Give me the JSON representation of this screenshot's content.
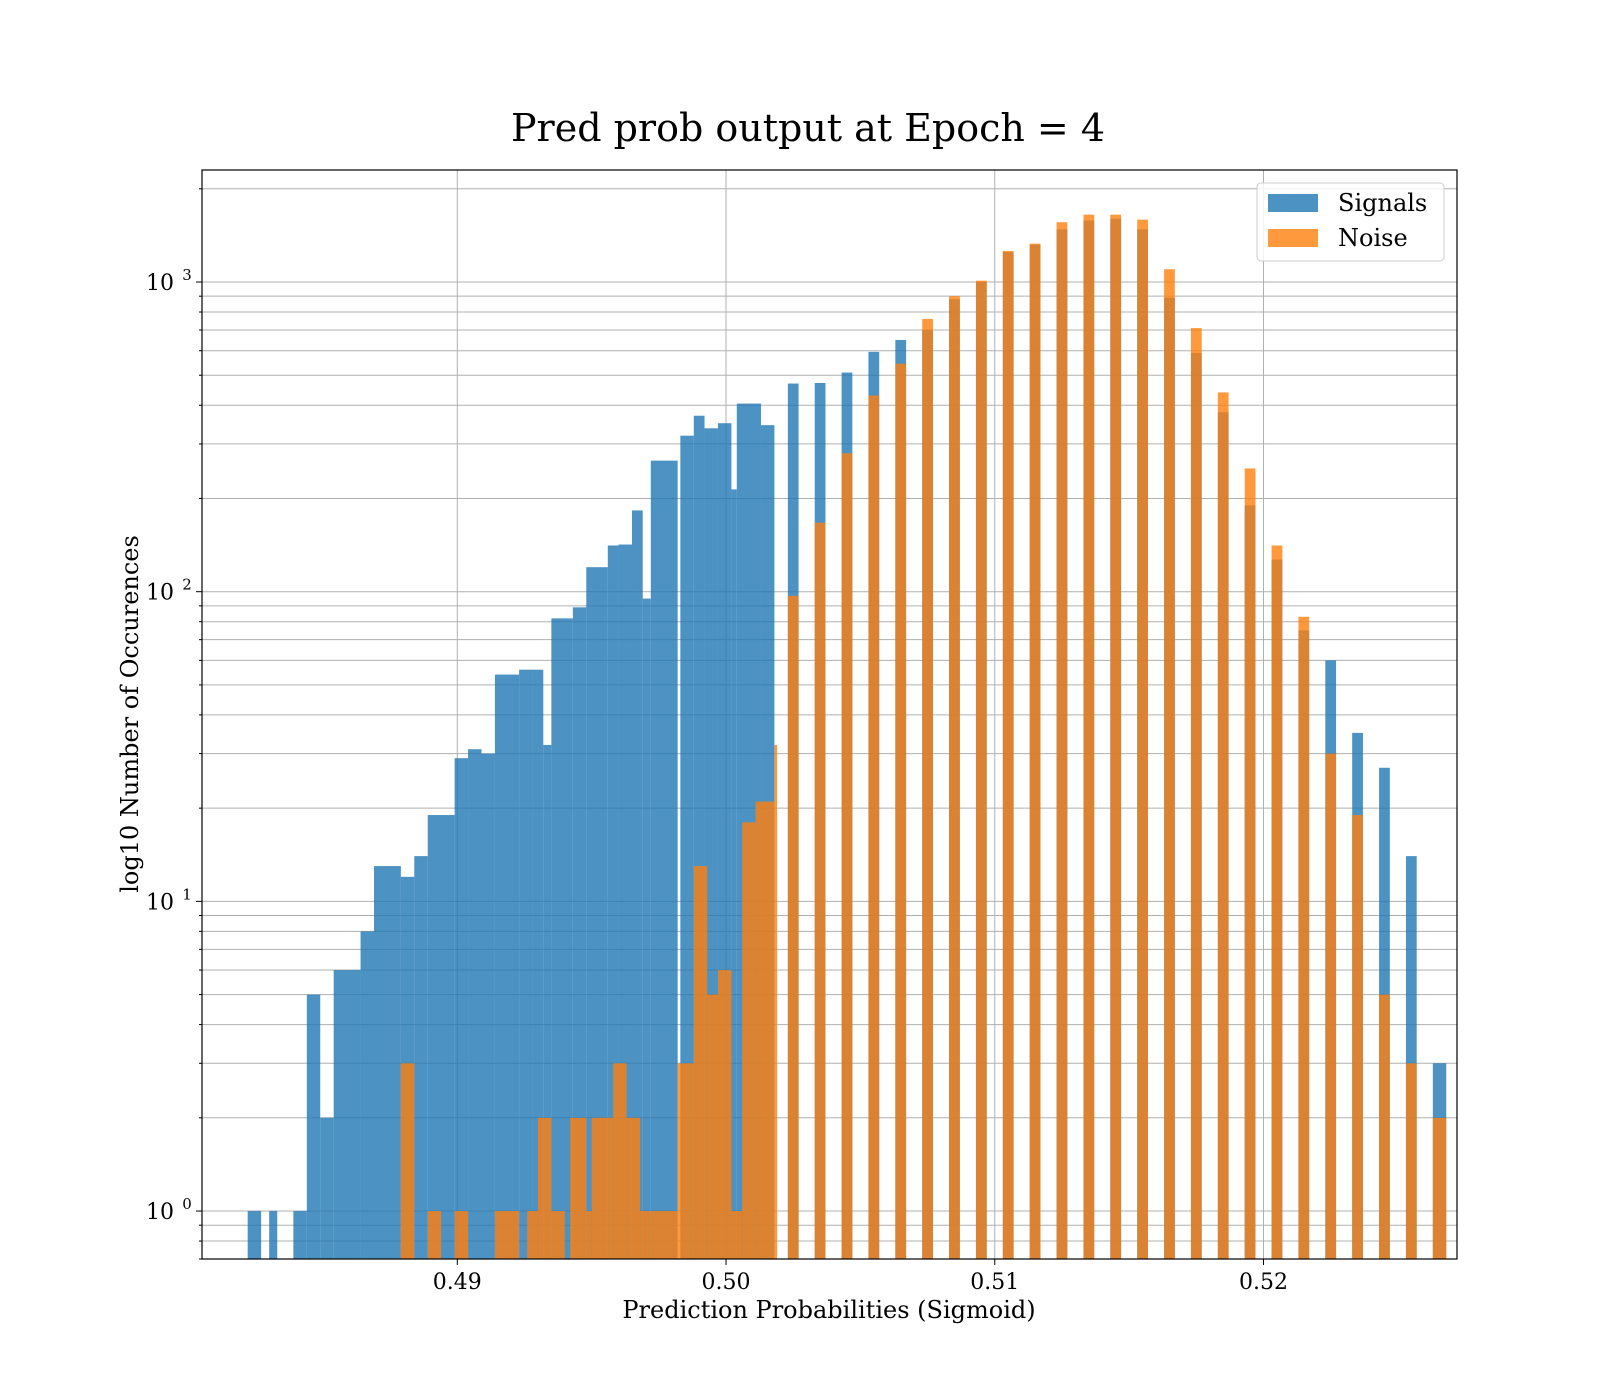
{
  "chart_data": {
    "type": "bar",
    "histogram": true,
    "title": "Pred prob output at Epoch = 4",
    "xlabel": "Prediction Probabilities (Sigmoid)",
    "ylabel": "log10 Number of Occurences",
    "xlim": [
      0.4805,
      0.5272
    ],
    "ylim": [
      0.7,
      2300
    ],
    "yscale": "log",
    "x_ticks": [
      0.49,
      0.5,
      0.51,
      0.52
    ],
    "x_tick_labels": [
      "0.49",
      "0.50",
      "0.51",
      "0.52"
    ],
    "y_ticks": [
      1,
      10,
      100,
      1000
    ],
    "y_tick_labels": [
      {
        "base": "10",
        "exp": "0"
      },
      {
        "base": "10",
        "exp": "1"
      },
      {
        "base": "10",
        "exp": "2"
      },
      {
        "base": "10",
        "exp": "3"
      }
    ],
    "grid": true,
    "legend_position": "top-right",
    "series": [
      {
        "name": "Signals",
        "color": "#1f77b4",
        "opacity": 0.8,
        "bins": [
          [
            0.4822,
            0.4827,
            1
          ],
          [
            0.483,
            0.4833,
            1
          ],
          [
            0.4839,
            0.4844,
            1
          ],
          [
            0.4844,
            0.4849,
            5
          ],
          [
            0.4849,
            0.4854,
            2
          ],
          [
            0.4854,
            0.4864,
            6
          ],
          [
            0.4864,
            0.4869,
            8
          ],
          [
            0.4869,
            0.4879,
            13
          ],
          [
            0.4879,
            0.4884,
            12
          ],
          [
            0.4884,
            0.4889,
            14
          ],
          [
            0.4889,
            0.4899,
            19
          ],
          [
            0.4899,
            0.4904,
            29
          ],
          [
            0.4904,
            0.4909,
            31
          ],
          [
            0.4909,
            0.4914,
            30
          ],
          [
            0.4914,
            0.4923,
            54
          ],
          [
            0.4923,
            0.4928,
            56
          ],
          [
            0.4928,
            0.4932,
            56
          ],
          [
            0.4932,
            0.4935,
            32
          ],
          [
            0.4935,
            0.4943,
            82
          ],
          [
            0.4943,
            0.4948,
            89
          ],
          [
            0.4948,
            0.4956,
            120
          ],
          [
            0.4956,
            0.496,
            141
          ],
          [
            0.496,
            0.4965,
            142
          ],
          [
            0.4965,
            0.4969,
            183
          ],
          [
            0.4969,
            0.4972,
            95
          ],
          [
            0.4972,
            0.4982,
            265
          ],
          [
            0.4983,
            0.4988,
            319
          ],
          [
            0.4988,
            0.4992,
            370
          ],
          [
            0.4992,
            0.4997,
            337
          ],
          [
            0.4997,
            0.5002,
            350
          ],
          [
            0.5002,
            0.5004,
            214
          ],
          [
            0.5004,
            0.5013,
            405
          ],
          [
            0.5013,
            0.5018,
            345
          ],
          [
            0.5023,
            0.5027,
            470
          ],
          [
            0.5033,
            0.5037,
            472
          ],
          [
            0.5043,
            0.5047,
            510
          ],
          [
            0.5053,
            0.5057,
            595
          ],
          [
            0.5063,
            0.5067,
            650
          ],
          [
            0.5073,
            0.5077,
            700
          ],
          [
            0.5083,
            0.5087,
            880
          ],
          [
            0.5093,
            0.5097,
            1000
          ],
          [
            0.5103,
            0.5107,
            1250
          ],
          [
            0.5113,
            0.5117,
            1320
          ],
          [
            0.5123,
            0.5127,
            1480
          ],
          [
            0.5133,
            0.5137,
            1580
          ],
          [
            0.5143,
            0.5147,
            1600
          ],
          [
            0.5153,
            0.5157,
            1480
          ],
          [
            0.5163,
            0.5167,
            890
          ],
          [
            0.5173,
            0.5177,
            590
          ],
          [
            0.5183,
            0.5187,
            380
          ],
          [
            0.5193,
            0.5197,
            190
          ],
          [
            0.5203,
            0.5207,
            127
          ],
          [
            0.5213,
            0.5217,
            75
          ],
          [
            0.5223,
            0.5227,
            60
          ],
          [
            0.5233,
            0.5237,
            35
          ],
          [
            0.5243,
            0.5247,
            27
          ],
          [
            0.5253,
            0.5257,
            14
          ],
          [
            0.5263,
            0.5268,
            3
          ]
        ]
      },
      {
        "name": "Noise",
        "color": "#ff7f0e",
        "opacity": 0.8,
        "bins": [
          [
            0.4879,
            0.4884,
            3
          ],
          [
            0.4889,
            0.4894,
            1
          ],
          [
            0.4899,
            0.4904,
            1
          ],
          [
            0.4914,
            0.4923,
            1
          ],
          [
            0.4926,
            0.493,
            1
          ],
          [
            0.493,
            0.4935,
            2
          ],
          [
            0.4935,
            0.494,
            1
          ],
          [
            0.4942,
            0.4948,
            2
          ],
          [
            0.4948,
            0.495,
            1
          ],
          [
            0.495,
            0.4958,
            2
          ],
          [
            0.4958,
            0.4963,
            3
          ],
          [
            0.4963,
            0.4968,
            2
          ],
          [
            0.4968,
            0.4972,
            1
          ],
          [
            0.4972,
            0.4982,
            1
          ],
          [
            0.4982,
            0.4988,
            3
          ],
          [
            0.4988,
            0.4993,
            13
          ],
          [
            0.4993,
            0.4997,
            5
          ],
          [
            0.4997,
            0.5002,
            6
          ],
          [
            0.5002,
            0.5006,
            1
          ],
          [
            0.5006,
            0.5011,
            18
          ],
          [
            0.5011,
            0.5018,
            21
          ],
          [
            0.5018,
            0.5019,
            32
          ],
          [
            0.5023,
            0.5027,
            97
          ],
          [
            0.5033,
            0.5037,
            167
          ],
          [
            0.5043,
            0.5047,
            280
          ],
          [
            0.5053,
            0.5057,
            430
          ],
          [
            0.5063,
            0.5067,
            545
          ],
          [
            0.5073,
            0.5077,
            760
          ],
          [
            0.5083,
            0.5087,
            900
          ],
          [
            0.5093,
            0.5097,
            1010
          ],
          [
            0.5103,
            0.5107,
            1260
          ],
          [
            0.5113,
            0.5117,
            1330
          ],
          [
            0.5123,
            0.5127,
            1560
          ],
          [
            0.5133,
            0.5137,
            1650
          ],
          [
            0.5143,
            0.5147,
            1650
          ],
          [
            0.5153,
            0.5157,
            1590
          ],
          [
            0.5163,
            0.5167,
            1100
          ],
          [
            0.5173,
            0.5177,
            710
          ],
          [
            0.5183,
            0.5187,
            440
          ],
          [
            0.5193,
            0.5197,
            250
          ],
          [
            0.5203,
            0.5207,
            141
          ],
          [
            0.5213,
            0.5217,
            83
          ],
          [
            0.5223,
            0.5227,
            30
          ],
          [
            0.5233,
            0.5237,
            19
          ],
          [
            0.5243,
            0.5247,
            5
          ],
          [
            0.5253,
            0.5257,
            3
          ],
          [
            0.5263,
            0.5268,
            2
          ]
        ]
      }
    ]
  }
}
